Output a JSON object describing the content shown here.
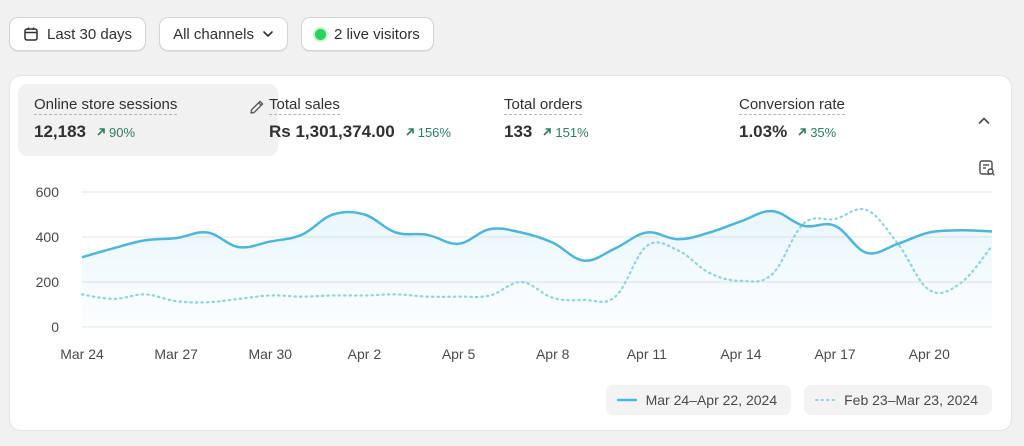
{
  "filters": {
    "date_range": "Last 30 days",
    "channels": "All channels",
    "live_visitors": "2 live visitors"
  },
  "metrics": [
    {
      "label": "Online store sessions",
      "value": "12,183",
      "change": "90%"
    },
    {
      "label": "Total sales",
      "value": "Rs 1,301,374.00",
      "change": "156%"
    },
    {
      "label": "Total orders",
      "value": "133",
      "change": "151%"
    },
    {
      "label": "Conversion rate",
      "value": "1.03%",
      "change": "35%"
    }
  ],
  "colors": {
    "current": "#4db6dc",
    "previous": "#8fd3e3",
    "positive": "#2e7d5b"
  },
  "chart_data": {
    "type": "line",
    "title": "Online store sessions",
    "xlabel": "",
    "ylabel": "",
    "ylim": [
      0,
      600
    ],
    "y_ticks": [
      0,
      200,
      400,
      600
    ],
    "x_tick_labels": [
      "Mar 24",
      "Mar 27",
      "Mar 30",
      "Apr 2",
      "Apr 5",
      "Apr 8",
      "Apr 11",
      "Apr 14",
      "Apr 17",
      "Apr 20"
    ],
    "x_tick_every": 3,
    "series": [
      {
        "name": "Mar 24–Apr 22, 2024",
        "style": "solid",
        "values": [
          310,
          350,
          385,
          395,
          420,
          355,
          380,
          410,
          500,
          500,
          420,
          410,
          370,
          435,
          420,
          375,
          295,
          350,
          420,
          390,
          420,
          470,
          515,
          450,
          450,
          330,
          370,
          420,
          430,
          425
        ]
      },
      {
        "name": "Feb 23–Mar 23, 2024",
        "style": "dotted",
        "values": [
          145,
          125,
          145,
          115,
          110,
          125,
          140,
          135,
          140,
          140,
          145,
          135,
          135,
          140,
          200,
          130,
          120,
          135,
          360,
          340,
          240,
          205,
          235,
          460,
          480,
          520,
          370,
          165,
          195,
          360
        ]
      }
    ]
  }
}
